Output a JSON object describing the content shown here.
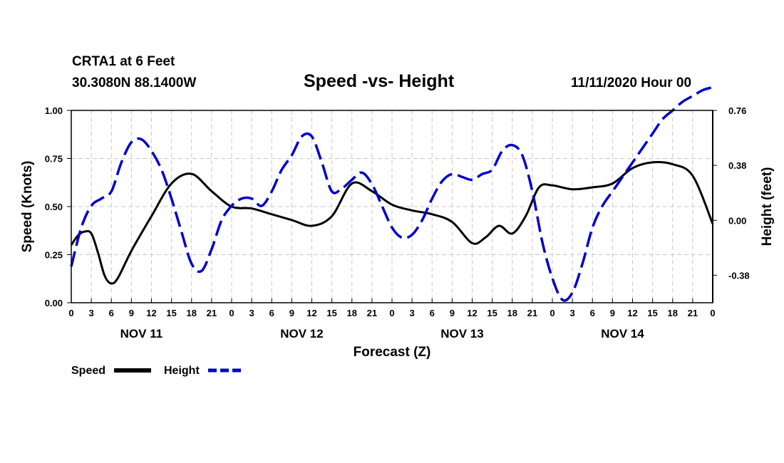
{
  "header": {
    "station": "CRTA1 at 6 Feet",
    "coords": "30.3080N 88.1400W",
    "title": "Speed -vs- Height",
    "issued": "11/11/2020 Hour 00"
  },
  "colors": {
    "speed": "#000000",
    "height": "#0000cc",
    "grid": "#c8c8c8"
  },
  "chart_data": {
    "type": "line",
    "title": "Speed -vs- Height",
    "xlabel": "Forecast (Z)",
    "ylabel": "Speed (Knots)",
    "y2label": "Height (feet)",
    "x_range_hours": [
      0,
      96
    ],
    "x_tick_step_hours": 3,
    "x_tick_labels": [
      "0",
      "3",
      "6",
      "9",
      "12",
      "15",
      "18",
      "21",
      "0",
      "3",
      "6",
      "9",
      "12",
      "15",
      "18",
      "21",
      "0",
      "3",
      "6",
      "9",
      "12",
      "15",
      "18",
      "21",
      "0",
      "3",
      "6",
      "9",
      "12",
      "15",
      "18",
      "21",
      "0"
    ],
    "day_labels": [
      {
        "label": "NOV 11",
        "hour": 10.5
      },
      {
        "label": "NOV 12",
        "hour": 34.5
      },
      {
        "label": "NOV 13",
        "hour": 58.5
      },
      {
        "label": "NOV 14",
        "hour": 82.5
      }
    ],
    "ylim": [
      0,
      1.0
    ],
    "y_ticks": [
      "0.00",
      "0.25",
      "0.50",
      "0.75",
      "1.00"
    ],
    "y2lim": [
      -0.57,
      0.76
    ],
    "y2_ticks": [
      -0.38,
      0.0,
      0.38,
      0.76
    ],
    "y2_tick_labels": [
      "-0.38",
      "0.00",
      "0.38",
      "0.76"
    ],
    "grid": true,
    "series": [
      {
        "name": "Speed",
        "axis": "left",
        "style": "solid",
        "x": [
          0,
          1,
          2,
          3,
          4,
          5,
          6,
          7,
          9,
          12,
          15,
          18,
          21,
          24,
          27,
          30,
          33,
          36,
          39,
          42,
          45,
          48,
          51,
          54,
          57,
          60,
          62,
          64,
          66,
          68,
          70,
          72,
          75,
          78,
          81,
          84,
          87,
          90,
          93,
          96
        ],
        "values": [
          0.3,
          0.35,
          0.37,
          0.36,
          0.26,
          0.14,
          0.1,
          0.13,
          0.27,
          0.45,
          0.62,
          0.67,
          0.58,
          0.5,
          0.49,
          0.46,
          0.43,
          0.4,
          0.45,
          0.62,
          0.58,
          0.51,
          0.48,
          0.46,
          0.42,
          0.31,
          0.34,
          0.4,
          0.36,
          0.45,
          0.6,
          0.61,
          0.59,
          0.6,
          0.62,
          0.7,
          0.73,
          0.72,
          0.66,
          0.41
        ]
      },
      {
        "name": "Height",
        "axis": "right",
        "style": "dashed",
        "x": [
          0,
          1.5,
          3,
          4.5,
          6,
          7.5,
          9,
          10.5,
          12,
          13.5,
          15,
          16.5,
          18,
          19.5,
          21,
          22.5,
          24,
          25.5,
          27,
          28.5,
          30,
          31.5,
          33,
          34.5,
          36,
          37.5,
          39,
          40.5,
          42,
          43.5,
          45,
          46.5,
          48,
          49.5,
          51,
          52.5,
          54,
          55.5,
          57,
          58.5,
          60,
          61.5,
          63,
          64.5,
          66,
          67.5,
          69,
          70.5,
          72,
          73.5,
          75,
          76.5,
          78,
          79.5,
          81,
          82.5,
          84,
          85.5,
          87,
          88.5,
          90,
          91.5,
          93,
          94.5,
          96
        ],
        "values": [
          -0.32,
          -0.05,
          0.1,
          0.15,
          0.2,
          0.4,
          0.54,
          0.56,
          0.48,
          0.35,
          0.15,
          -0.08,
          -0.3,
          -0.35,
          -0.2,
          0.0,
          0.1,
          0.15,
          0.15,
          0.1,
          0.2,
          0.35,
          0.45,
          0.58,
          0.58,
          0.4,
          0.2,
          0.22,
          0.28,
          0.33,
          0.25,
          0.1,
          -0.05,
          -0.12,
          -0.1,
          0.0,
          0.15,
          0.27,
          0.32,
          0.3,
          0.28,
          0.32,
          0.35,
          0.48,
          0.52,
          0.45,
          0.2,
          -0.15,
          -0.4,
          -0.55,
          -0.5,
          -0.3,
          -0.05,
          0.1,
          0.2,
          0.3,
          0.4,
          0.5,
          0.6,
          0.7,
          0.76,
          0.82,
          0.86,
          0.9,
          0.92
        ]
      }
    ],
    "legend": {
      "position": "bottom-left",
      "entries": [
        {
          "label": "Speed",
          "style": "solid"
        },
        {
          "label": "Height",
          "style": "dashed"
        }
      ]
    }
  }
}
